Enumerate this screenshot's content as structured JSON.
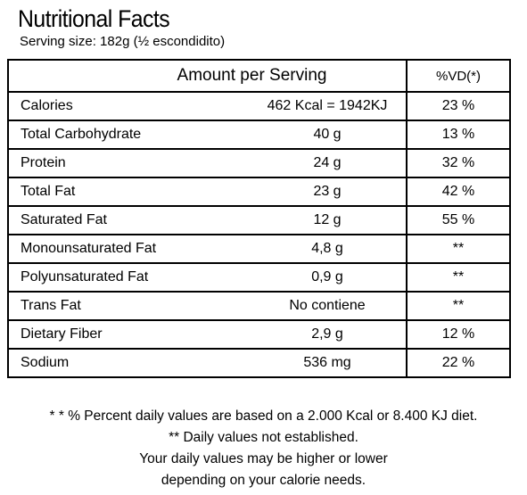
{
  "label": {
    "title": "Nutritional Facts",
    "serving_size": "Serving size: 182g (½ escondidito)",
    "header_amount": "Amount per Serving",
    "header_dv": "%VD(*)",
    "rows": [
      {
        "nutrient": "Calories",
        "amount": "462 Kcal = 1942KJ",
        "dv": "23 %"
      },
      {
        "nutrient": "Total Carbohydrate",
        "amount": "40 g",
        "dv": "13 %"
      },
      {
        "nutrient": "Protein",
        "amount": "24 g",
        "dv": "32 %"
      },
      {
        "nutrient": "Total Fat",
        "amount": "23 g",
        "dv": "42 %"
      },
      {
        "nutrient": "Saturated Fat",
        "amount": "12 g",
        "dv": "55 %"
      },
      {
        "nutrient": "Monounsaturated Fat",
        "amount": "4,8 g",
        "dv": "**"
      },
      {
        "nutrient": "Polyunsaturated Fat",
        "amount": "0,9 g",
        "dv": "**"
      },
      {
        "nutrient": "Trans Fat",
        "amount": "No contiene",
        "dv": "**"
      },
      {
        "nutrient": "Dietary Fiber",
        "amount": "2,9 g",
        "dv": "12 %"
      },
      {
        "nutrient": "Sodium",
        "amount": "536 mg",
        "dv": "22 %"
      }
    ],
    "footnotes": [
      "* * % Percent daily values are based on a 2.000 Kcal or 8.400 KJ diet.",
      "** Daily values not established.",
      "Your daily values may be higher or lower",
      "depending on your calorie needs."
    ]
  }
}
